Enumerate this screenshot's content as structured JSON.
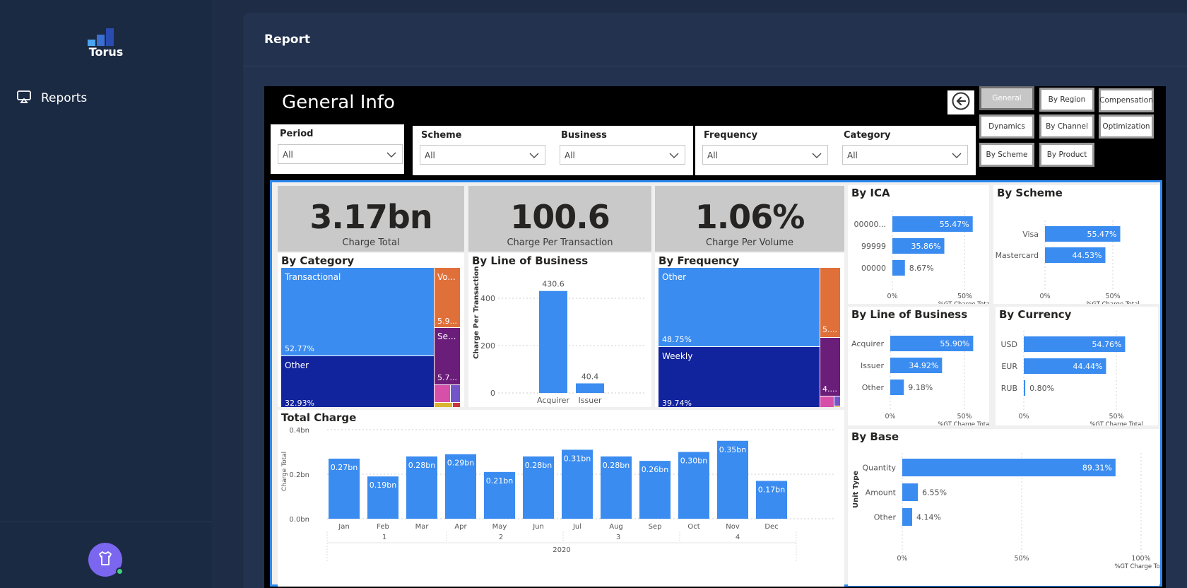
{
  "app": {
    "name": "Torus"
  },
  "sidebar": {
    "nav": [
      {
        "label": "Reports",
        "icon": "monitor-icon"
      }
    ]
  },
  "header": {
    "title": "Report"
  },
  "report": {
    "title": "General Info",
    "nav_buttons": [
      "General",
      "By Region",
      "Compensation",
      "Dynamics",
      "By Channel",
      "Optimization",
      "By Scheme",
      "By Product"
    ],
    "active_nav": "General",
    "filters": {
      "period": {
        "label": "Period",
        "value": "All"
      },
      "scheme": {
        "label": "Scheme",
        "value": "All"
      },
      "business": {
        "label": "Business",
        "value": "All"
      },
      "frequency": {
        "label": "Frequency",
        "value": "All"
      },
      "category": {
        "label": "Category",
        "value": "All"
      }
    },
    "kpis": [
      {
        "value": "3.17bn",
        "label": "Charge Total"
      },
      {
        "value": "100.6",
        "label": "Charge Per Transaction"
      },
      {
        "value": "1.06%",
        "label": "Charge Per Volume"
      }
    ],
    "colors": {
      "blue": "#3b8cf0",
      "navy": "#12239e",
      "orange": "#e0703a",
      "purple": "#6b1d7a",
      "pink": "#d64fa8",
      "violet": "#7355c9",
      "yellow": "#d9b431",
      "red": "#c8373a",
      "accent": "#2d88ef"
    }
  },
  "chart_data": [
    {
      "id": "by_category",
      "type": "treemap",
      "title": "By Category",
      "items": [
        {
          "name": "Transactional",
          "label": "52.77%",
          "value": 52.77
        },
        {
          "name": "Other",
          "label": "32.93%",
          "value": 32.93
        },
        {
          "name": "Vo...",
          "label": "5.9...",
          "value": 5.9
        },
        {
          "name": "Se...",
          "label": "5.7...",
          "value": 5.7
        }
      ]
    },
    {
      "id": "by_line_of_business_cpt",
      "type": "bar",
      "title": "By Line of Business",
      "categories": [
        "Acquirer",
        "Issuer"
      ],
      "values": [
        430.6,
        40.4
      ],
      "value_labels": [
        "430.6",
        "40.4"
      ],
      "ylabel": "Charge Per Transaction",
      "yticks": [
        "400",
        "200",
        "0"
      ],
      "ylim": [
        0,
        470
      ]
    },
    {
      "id": "by_frequency",
      "type": "treemap",
      "title": "By Frequency",
      "items": [
        {
          "name": "Other",
          "label": "48.75%",
          "value": 48.75
        },
        {
          "name": "Weekly",
          "label": "39.74%",
          "value": 39.74
        },
        {
          "name": "",
          "label": "5....",
          "value": 5
        },
        {
          "name": "",
          "label": "4....",
          "value": 4
        }
      ]
    },
    {
      "id": "by_ica",
      "type": "bar",
      "orientation": "horizontal",
      "title": "By ICA",
      "categories": [
        "00000...",
        "99999",
        "00000"
      ],
      "values": [
        55.47,
        35.86,
        8.67
      ],
      "value_labels": [
        "55.47%",
        "35.86%",
        "8.67%"
      ],
      "xlabel": "%GT Charge Total",
      "xticks": [
        "0%",
        "50%"
      ]
    },
    {
      "id": "by_scheme",
      "type": "bar",
      "orientation": "horizontal",
      "title": "By Scheme",
      "categories": [
        "Visa",
        "Mastercard"
      ],
      "values": [
        55.47,
        44.53
      ],
      "value_labels": [
        "55.47%",
        "44.53%"
      ],
      "xlabel": "%GT Charge Total",
      "xticks": [
        "0%",
        "50%"
      ]
    },
    {
      "id": "by_line_of_business_pct",
      "type": "bar",
      "orientation": "horizontal",
      "title": "By Line of Business",
      "categories": [
        "Acquirer",
        "Issuer",
        "Other"
      ],
      "values": [
        55.9,
        34.92,
        9.18
      ],
      "value_labels": [
        "55.90%",
        "34.92%",
        "9.18%"
      ],
      "xlabel": "%GT Charge Total",
      "xticks": [
        "0%",
        "50%"
      ]
    },
    {
      "id": "by_currency",
      "type": "bar",
      "orientation": "horizontal",
      "title": "By Currency",
      "categories": [
        "USD",
        "EUR",
        "RUB"
      ],
      "values": [
        54.76,
        44.44,
        0.8
      ],
      "value_labels": [
        "54.76%",
        "44.44%",
        "0.80%"
      ],
      "xlabel": "%GT Charge Total",
      "xticks": [
        "0%",
        "50%"
      ]
    },
    {
      "id": "by_base",
      "type": "bar",
      "orientation": "horizontal",
      "title": "By Base",
      "categories": [
        "Quantity",
        "Amount",
        "Other"
      ],
      "values": [
        89.31,
        6.55,
        4.14
      ],
      "value_labels": [
        "89.31%",
        "6.55%",
        "4.14%"
      ],
      "ylabel": "Unit Type",
      "xlabel": "%GT Charge Total",
      "xticks": [
        "0%",
        "50%",
        "100%"
      ]
    },
    {
      "id": "total_charge",
      "type": "bar",
      "title": "Total Charge",
      "categories": [
        "Jan",
        "Feb",
        "Mar",
        "Apr",
        "May",
        "Jun",
        "Jul",
        "Aug",
        "Sep",
        "Oct",
        "Nov",
        "Dec"
      ],
      "values": [
        0.27,
        0.19,
        0.28,
        0.29,
        0.21,
        0.28,
        0.31,
        0.28,
        0.26,
        0.3,
        0.35,
        0.17
      ],
      "value_labels": [
        "0.27bn",
        "0.19bn",
        "0.28bn",
        "0.29bn",
        "0.21bn",
        "0.28bn",
        "0.31bn",
        "0.28bn",
        "0.26bn",
        "0.30bn",
        "0.35bn",
        "0.17bn"
      ],
      "quarters": [
        "1",
        "2",
        "3",
        "4"
      ],
      "year": "2020",
      "ylabel": "Charge Total",
      "yticks": [
        "0.4bn",
        "0.2bn",
        "0.0bn"
      ],
      "ylim": [
        0,
        0.4
      ]
    }
  ]
}
